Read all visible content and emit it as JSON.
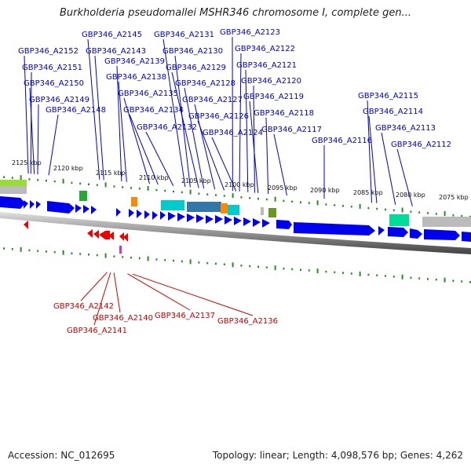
{
  "title": "Burkholderia pseudomallei MSHR346 chromosome I, complete gen...",
  "footer": {
    "accession": "Accession: NC_012695",
    "summary": "Topology: linear; Length: 4,098,576 bp; Genes: 4,262"
  },
  "axis": {
    "unit": "kbp",
    "direction": "decreasing-left-to-right",
    "ticks": [
      "2125 kbp",
      "2120 kbp",
      "2115 kbp",
      "2110 kbp",
      "2105 kbp",
      "2100 kbp",
      "2095 kbp",
      "2090 kbp",
      "2085 kbp",
      "2080 kbp",
      "2075 kbp"
    ]
  },
  "colors": {
    "forward_gene": "#0000ee",
    "reverse_gene": "#ee0000",
    "top_label": "#0000cc",
    "bottom_label": "#cc0000",
    "track_dots": "#2a8a2a",
    "backbone": "#808080"
  },
  "top_labels": [
    {
      "name": "GBP346_A2145",
      "kbp": 2116.5
    },
    {
      "name": "GBP346_A2131",
      "kbp": 2106.4
    },
    {
      "name": "GBP346_A2123",
      "kbp": 2100.8
    },
    {
      "name": "GBP346_A2152",
      "kbp": 2124.9
    },
    {
      "name": "GBP346_A2143",
      "kbp": 2116.0
    },
    {
      "name": "GBP346_A2130",
      "kbp": 2105.8
    },
    {
      "name": "GBP346_A2122",
      "kbp": 2100.0
    },
    {
      "name": "GBP346_A2151",
      "kbp": 2124.6
    },
    {
      "name": "GBP346_A2139",
      "kbp": 2113.9
    },
    {
      "name": "GBP346_A2129",
      "kbp": 2104.8
    },
    {
      "name": "GBP346_A2121",
      "kbp": 2099.0
    },
    {
      "name": "GBP346_A2138",
      "kbp": 2113.3
    },
    {
      "name": "GBP346_A2150",
      "kbp": 2124.2
    },
    {
      "name": "GBP346_A2128",
      "kbp": 2104.2
    },
    {
      "name": "GBP346_A2120",
      "kbp": 2098.2
    },
    {
      "name": "GBP346_A2135",
      "kbp": 2110.6
    },
    {
      "name": "GBP346_A2149",
      "kbp": 2123.8
    },
    {
      "name": "GBP346_A2127",
      "kbp": 2102.9
    },
    {
      "name": "GBP346_A2119",
      "kbp": 2097.8
    },
    {
      "name": "GBP346_A2115",
      "kbp": 2084.4
    },
    {
      "name": "GBP346_A2148",
      "kbp": 2122.5
    },
    {
      "name": "GBP346_A2134",
      "kbp": 2109.6
    },
    {
      "name": "GBP346_A2126",
      "kbp": 2101.8
    },
    {
      "name": "GBP346_A2118",
      "kbp": 2096.6
    },
    {
      "name": "GBP346_A2114",
      "kbp": 2083.8
    },
    {
      "name": "GBP346_A2132",
      "kbp": 2107.8
    },
    {
      "name": "GBP346_A2117",
      "kbp": 2094.4
    },
    {
      "name": "GBP346_A2113",
      "kbp": 2081.6
    },
    {
      "name": "GBP346_A2124",
      "kbp": 2100.4
    },
    {
      "name": "GBP346_A2116",
      "kbp": 2090.0
    },
    {
      "name": "GBP346_A2112",
      "kbp": 2079.6
    }
  ],
  "bottom_labels": [
    {
      "name": "GBP346_A2142",
      "kbp": 2115.6
    },
    {
      "name": "GBP346_A2140",
      "kbp": 2114.8
    },
    {
      "name": "GBP346_A2141",
      "kbp": 2115.2
    },
    {
      "name": "GBP346_A2137",
      "kbp": 2113.2
    },
    {
      "name": "GBP346_A2136",
      "kbp": 2112.6
    }
  ]
}
